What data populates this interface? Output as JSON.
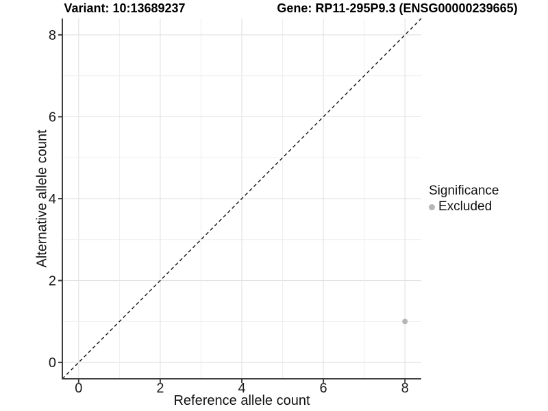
{
  "chart_data": {
    "type": "scatter",
    "title_left": "Variant: 10:13689237",
    "title_right": "Gene: RP11-295P9.3 (ENSG00000239665)",
    "xlabel": "Reference allele count",
    "ylabel": "Alternative allele count",
    "xlim": [
      -0.4,
      8.4
    ],
    "ylim": [
      -0.4,
      8.4
    ],
    "xticks": [
      0,
      2,
      4,
      6,
      8
    ],
    "yticks": [
      0,
      2,
      4,
      6,
      8
    ],
    "grid_values": [
      0,
      1,
      2,
      3,
      4,
      5,
      6,
      7,
      8
    ],
    "grid": true,
    "legend_title": "Significance",
    "legend_position": "right",
    "reference_line": {
      "equation": "y = x",
      "style": "dashed",
      "color": "#111111",
      "from": [
        -0.4,
        -0.4
      ],
      "to": [
        8.4,
        8.4
      ]
    },
    "series": [
      {
        "name": "Excluded",
        "color": "#b6b6b6",
        "points": [
          {
            "x": 8,
            "y": 1
          }
        ]
      }
    ],
    "colors": {
      "background": "#ffffff",
      "grid_major": "#e3e3e3",
      "grid_minor": "#eeeeee",
      "axis_line": "#404040",
      "tick_text": "#1a1a1a"
    }
  }
}
